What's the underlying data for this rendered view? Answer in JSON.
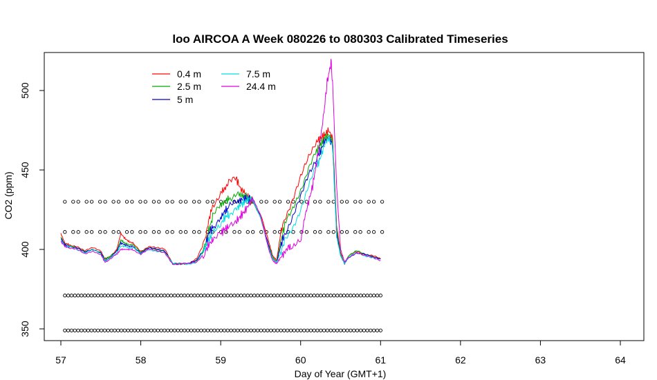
{
  "chart_data": {
    "type": "line",
    "title": "loo AIRCOA A  Week 080226 to 080303  Calibrated Timeseries",
    "xlabel": "Day of Year (GMT+1)",
    "ylabel": "CO2 (ppm)",
    "xlim": [
      57,
      64
    ],
    "ylim": [
      345,
      522
    ],
    "xticks": [
      57,
      58,
      59,
      60,
      61,
      62,
      63,
      64
    ],
    "yticks": [
      350,
      400,
      450,
      500
    ],
    "grid": false,
    "legend_position": "top-left",
    "series": [
      {
        "name": "0.4 m",
        "color": "#ff0000",
        "x": [
          57.0,
          57.05,
          57.1,
          57.2,
          57.3,
          57.4,
          57.5,
          57.55,
          57.6,
          57.7,
          57.75,
          57.8,
          57.85,
          57.9,
          58.0,
          58.1,
          58.2,
          58.3,
          58.4,
          58.5,
          58.6,
          58.7,
          58.8,
          58.85,
          58.9,
          59.0,
          59.05,
          59.1,
          59.2,
          59.25,
          59.3,
          59.35,
          59.4,
          59.5,
          59.6,
          59.65,
          59.7,
          59.75,
          59.8,
          59.9,
          60.0,
          60.1,
          60.2,
          60.25,
          60.3,
          60.35,
          60.4,
          60.45,
          60.5,
          60.55,
          60.6,
          60.7,
          60.8,
          60.9,
          61.0
        ],
        "y": [
          410,
          404,
          403,
          402,
          399,
          401,
          399,
          394,
          395,
          400,
          410,
          407,
          405,
          404,
          399,
          402,
          401,
          400,
          391,
          391,
          391,
          394,
          405,
          418,
          428,
          436,
          438,
          442,
          444,
          438,
          436,
          432,
          430,
          422,
          405,
          396,
          393,
          410,
          420,
          432,
          445,
          457,
          468,
          470,
          472,
          475,
          470,
          415,
          398,
          391,
          396,
          399,
          397,
          396,
          394
        ]
      },
      {
        "name": "2.5 m",
        "color": "#00aa00",
        "x": [
          57.0,
          57.05,
          57.1,
          57.2,
          57.3,
          57.4,
          57.5,
          57.55,
          57.6,
          57.7,
          57.75,
          57.8,
          57.85,
          57.9,
          58.0,
          58.1,
          58.2,
          58.3,
          58.4,
          58.5,
          58.6,
          58.7,
          58.8,
          58.85,
          58.9,
          59.0,
          59.05,
          59.1,
          59.2,
          59.25,
          59.3,
          59.35,
          59.4,
          59.5,
          59.6,
          59.65,
          59.7,
          59.75,
          59.8,
          59.9,
          60.0,
          60.1,
          60.2,
          60.25,
          60.3,
          60.35,
          60.4,
          60.45,
          60.5,
          60.55,
          60.6,
          60.7,
          60.8,
          60.9,
          61.0
        ],
        "y": [
          408,
          403,
          402,
          401,
          399,
          400,
          398,
          394,
          395,
          399,
          406,
          404,
          403,
          403,
          398,
          401,
          400,
          399,
          391,
          391,
          391,
          393,
          402,
          412,
          420,
          428,
          430,
          432,
          436,
          434,
          434,
          432,
          430,
          420,
          403,
          395,
          392,
          405,
          415,
          425,
          438,
          452,
          462,
          466,
          470,
          472,
          468,
          412,
          397,
          391,
          396,
          399,
          397,
          396,
          394
        ]
      },
      {
        "name": "5 m",
        "color": "#0000cc",
        "x": [
          57.0,
          57.05,
          57.1,
          57.2,
          57.3,
          57.4,
          57.5,
          57.55,
          57.6,
          57.7,
          57.75,
          57.8,
          57.85,
          57.9,
          58.0,
          58.1,
          58.2,
          58.3,
          58.4,
          58.5,
          58.6,
          58.7,
          58.8,
          58.85,
          58.9,
          59.0,
          59.05,
          59.1,
          59.2,
          59.25,
          59.3,
          59.35,
          59.4,
          59.5,
          59.6,
          59.65,
          59.7,
          59.75,
          59.8,
          59.9,
          60.0,
          60.1,
          60.2,
          60.25,
          60.3,
          60.35,
          60.4,
          60.45,
          60.5,
          60.55,
          60.6,
          60.7,
          60.8,
          60.9,
          61.0
        ],
        "y": [
          407,
          403,
          402,
          401,
          398,
          400,
          398,
          393,
          394,
          399,
          404,
          403,
          402,
          402,
          398,
          401,
          400,
          399,
          391,
          391,
          391,
          393,
          401,
          410,
          414,
          420,
          424,
          426,
          430,
          431,
          432,
          432,
          431,
          420,
          402,
          394,
          392,
          402,
          410,
          420,
          432,
          447,
          458,
          462,
          468,
          470,
          466,
          410,
          396,
          391,
          395,
          398,
          397,
          395,
          394
        ]
      },
      {
        "name": "7.5 m",
        "color": "#00dddd",
        "x": [
          57.0,
          57.05,
          57.1,
          57.2,
          57.3,
          57.4,
          57.5,
          57.55,
          57.6,
          57.7,
          57.75,
          57.8,
          57.85,
          57.9,
          58.0,
          58.1,
          58.2,
          58.3,
          58.4,
          58.5,
          58.6,
          58.7,
          58.8,
          58.85,
          58.9,
          59.0,
          59.05,
          59.1,
          59.2,
          59.25,
          59.3,
          59.35,
          59.4,
          59.5,
          59.6,
          59.65,
          59.7,
          59.75,
          59.8,
          59.9,
          60.0,
          60.1,
          60.2,
          60.25,
          60.3,
          60.35,
          60.4,
          60.45,
          60.5,
          60.55,
          60.6,
          60.7,
          60.8,
          60.9,
          61.0
        ],
        "y": [
          406,
          402,
          402,
          400,
          398,
          400,
          397,
          393,
          394,
          398,
          402,
          402,
          401,
          401,
          397,
          400,
          399,
          398,
          391,
          391,
          391,
          392,
          400,
          406,
          410,
          416,
          420,
          422,
          426,
          428,
          430,
          432,
          431,
          420,
          401,
          394,
          392,
          398,
          405,
          414,
          426,
          440,
          452,
          458,
          466,
          470,
          465,
          408,
          396,
          391,
          395,
          398,
          396,
          395,
          393
        ]
      },
      {
        "name": "24.4 m",
        "color": "#dd00dd",
        "x": [
          57.0,
          57.05,
          57.1,
          57.2,
          57.3,
          57.4,
          57.5,
          57.55,
          57.6,
          57.7,
          57.75,
          57.8,
          57.85,
          57.9,
          58.0,
          58.1,
          58.2,
          58.3,
          58.4,
          58.5,
          58.6,
          58.7,
          58.8,
          58.85,
          58.9,
          59.0,
          59.05,
          59.1,
          59.2,
          59.25,
          59.3,
          59.35,
          59.4,
          59.5,
          59.6,
          59.65,
          59.7,
          59.75,
          59.8,
          59.85,
          59.9,
          60.0,
          60.05,
          60.1,
          60.15,
          60.2,
          60.25,
          60.3,
          60.33,
          60.36,
          60.38,
          60.4,
          60.45,
          60.5,
          60.55,
          60.6,
          60.7,
          60.8,
          60.9,
          61.0
        ],
        "y": [
          405,
          402,
          401,
          400,
          397,
          399,
          397,
          392,
          393,
          397,
          400,
          400,
          400,
          400,
          397,
          400,
          399,
          398,
          391,
          391,
          391,
          392,
          398,
          403,
          406,
          410,
          413,
          414,
          418,
          421,
          424,
          428,
          432,
          421,
          400,
          393,
          391,
          395,
          398,
          402,
          400,
          405,
          420,
          430,
          440,
          455,
          470,
          490,
          505,
          512,
          518,
          505,
          440,
          400,
          392,
          395,
          398,
          396,
          395,
          393
        ]
      }
    ],
    "markers": {
      "symbol": "circle",
      "x_start": 57.0,
      "x_end": 61.0,
      "rows": [
        430,
        411,
        371,
        349
      ]
    }
  },
  "legend": [
    {
      "label": "0.4 m",
      "color": "#ff0000"
    },
    {
      "label": "2.5 m",
      "color": "#00aa00"
    },
    {
      "label": "5 m",
      "color": "#0000cc"
    },
    {
      "label": "7.5 m",
      "color": "#00dddd"
    },
    {
      "label": "24.4 m",
      "color": "#dd00dd"
    }
  ]
}
